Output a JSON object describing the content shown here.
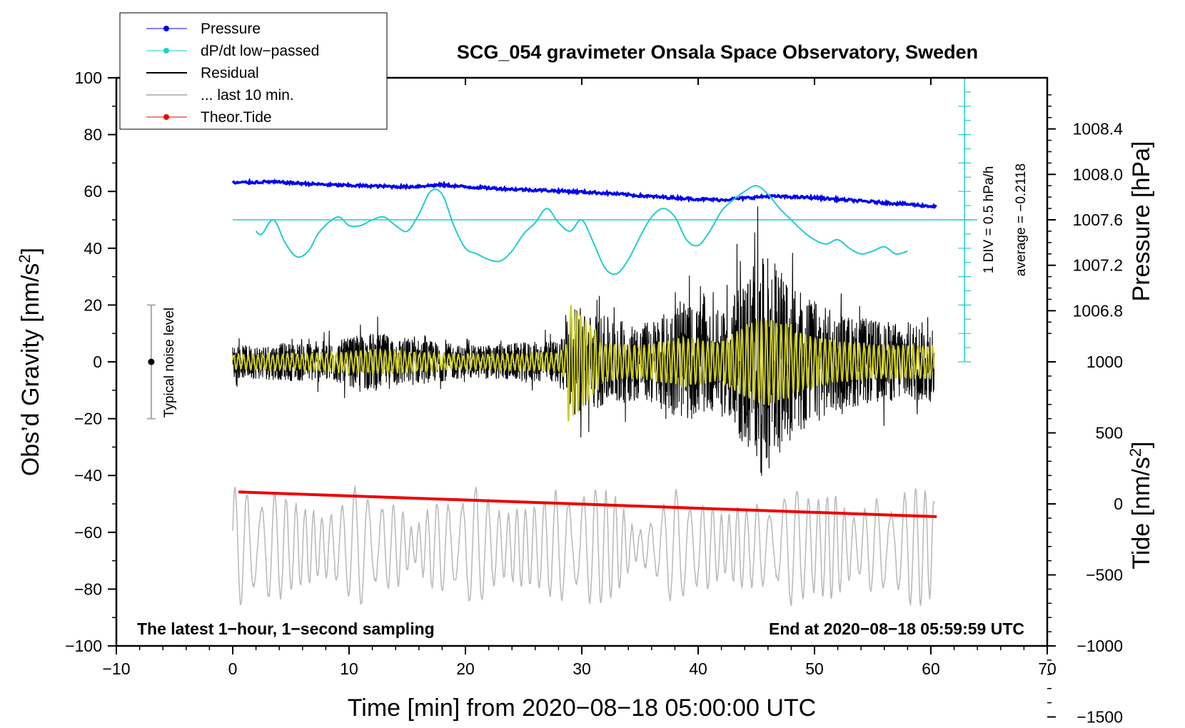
{
  "chart_data": {
    "type": "line",
    "title": "SCG_054 gravimeter Onsala Space Observatory, Sweden",
    "xlabel": "Time [min] from 2020−08−18 05:00:00 UTC",
    "ylabel": "Obs’d Gravity [nm/s",
    "ylabel_sup": "2",
    "ylabel_close": "]",
    "y2label": "Pressure [hPa]",
    "y3label": "Tide [nm/s",
    "y3label_sup": "2",
    "y3label_close": "]",
    "xlim": [
      -10,
      70
    ],
    "ylim": [
      -100,
      100
    ],
    "x_ticks": [
      -10,
      0,
      10,
      20,
      30,
      40,
      50,
      60,
      70
    ],
    "x_tick_labels": [
      "−10",
      "0",
      "10",
      "20",
      "30",
      "40",
      "50",
      "60",
      "70"
    ],
    "y_ticks": [
      -100,
      -80,
      -60,
      -40,
      -20,
      0,
      20,
      40,
      60,
      80,
      100
    ],
    "y_tick_labels": [
      "−100",
      "−80",
      "−60",
      "−40",
      "−20",
      "0",
      "20",
      "40",
      "60",
      "80",
      "100"
    ],
    "pressure_axis": {
      "ticks": [
        1006.8,
        1007.2,
        1007.6,
        1008.0,
        1008.4
      ],
      "tick_labels": [
        "1006.8",
        "1007.2",
        "1007.6",
        "1008.0",
        "1008.4"
      ],
      "ref_value": 1007.6,
      "ref_gravity_units": 50,
      "gravity_units_per_hpa": 40
    },
    "tide_axis": {
      "ticks": [
        -1500,
        -1000,
        -500,
        0,
        500,
        1000
      ],
      "tick_labels": [
        "−1500",
        "−1000",
        "−500",
        "0",
        "500",
        "1000"
      ],
      "zero_gravity_units": -50,
      "gravity_units_per_tide_unit": 0.05
    },
    "series": [
      {
        "name": "Pressure",
        "color": "#0000ee",
        "x": [
          0,
          3,
          6,
          9,
          12,
          15,
          18,
          20,
          24,
          28,
          32,
          36,
          40,
          42,
          46,
          50,
          54,
          58,
          60.5
        ],
        "y": [
          63,
          63.4,
          62.8,
          62.2,
          61.9,
          61.6,
          62.3,
          61.6,
          60.8,
          60.2,
          59.4,
          58.2,
          57.3,
          57.0,
          58.3,
          57.8,
          56.6,
          55.5,
          54.6
        ]
      },
      {
        "name": "dP/dt low−passed",
        "color": "#22cccc",
        "x": [
          2,
          2.5,
          3.5,
          4.5,
          5.5,
          6.5,
          7.5,
          9,
          10,
          11,
          12,
          13,
          14,
          15,
          16,
          17,
          18,
          19,
          20,
          21,
          22,
          23,
          24,
          25,
          26,
          27,
          28,
          29,
          30,
          31,
          32,
          33,
          34,
          35,
          36,
          37,
          38,
          39,
          40,
          41,
          42,
          43,
          44,
          45,
          46,
          47,
          48,
          49,
          50,
          51,
          52,
          53,
          54,
          55,
          56,
          57,
          58
        ],
        "y": [
          46,
          45,
          50,
          42,
          37,
          39,
          46,
          51,
          48,
          48,
          50,
          51,
          48,
          46,
          52,
          60,
          59,
          48,
          40,
          38,
          36,
          35.5,
          39,
          45,
          49,
          54,
          49,
          46,
          50,
          42,
          33,
          31,
          36,
          44,
          51,
          54,
          51,
          43,
          41,
          46,
          53,
          57,
          60,
          62,
          59,
          54,
          50,
          46,
          43,
          41.5,
          43,
          40,
          38,
          39,
          40.5,
          38,
          39
        ]
      },
      {
        "name": "Residual",
        "color": "#000000",
        "x_range": [
          0,
          60.3
        ],
        "envelope": [
          [
            0,
            6
          ],
          [
            9,
            8
          ],
          [
            12,
            11
          ],
          [
            20,
            6
          ],
          [
            28,
            8
          ],
          [
            29,
            20
          ],
          [
            31,
            18
          ],
          [
            35,
            14
          ],
          [
            39,
            22
          ],
          [
            42,
            17
          ],
          [
            44,
            33
          ],
          [
            46,
            40
          ],
          [
            48,
            28
          ],
          [
            52,
            18
          ],
          [
            56,
            15
          ],
          [
            60,
            15
          ]
        ]
      },
      {
        "name": "... last 10 min.",
        "color": "#bbbbbb",
        "x_range": [
          0,
          60.3
        ],
        "center": -65,
        "amplitude": 17
      },
      {
        "name": "Theor.Tide",
        "color": "#ee0000",
        "x": [
          0.5,
          60.5
        ],
        "y": [
          -45.8,
          -54.5
        ]
      }
    ],
    "legend": {
      "placement": "top-left",
      "entries": [
        {
          "label": "Pressure",
          "color": "#0000ee",
          "marker": true,
          "lw": 1
        },
        {
          "label": "dP/dt low−passed",
          "color": "#22cccc",
          "marker": true,
          "lw": 1
        },
        {
          "label": "Residual",
          "color": "#000000",
          "marker": false,
          "lw": 2
        },
        {
          "label": "... last 10 min.",
          "color": "#bbbbbb",
          "marker": false,
          "lw": 2
        },
        {
          "label": "Theor.Tide",
          "color": "#ee0000",
          "marker": true,
          "lw": 1
        }
      ]
    },
    "annotations": {
      "bottom_left": "The latest 1−hour, 1−second sampling",
      "bottom_right": "End at 2020−08−18 05:59:59 UTC",
      "div_note": "1 DIV = 0.5 hPa/h",
      "average_note": "average = −0.2118",
      "noise_label": "Typical noise level",
      "noise_center": 0,
      "noise_halfwidth": 20,
      "noise_x": -7
    },
    "colors": {
      "filtered_overlay": "#cccc22",
      "zero_line": "#22cccc"
    }
  }
}
